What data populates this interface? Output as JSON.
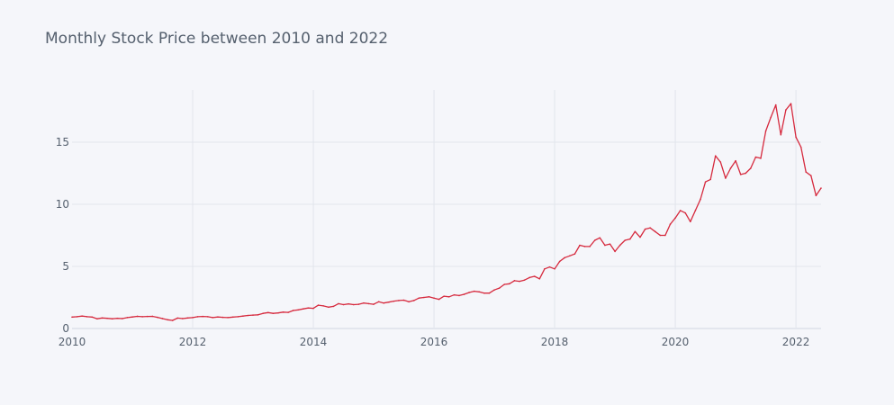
{
  "chart_data": {
    "type": "line",
    "title": "Monthly Stock Price between 2010 and 2022",
    "xlabel": "",
    "ylabel": "",
    "grid": true,
    "legend": "none",
    "x_ticks": [
      "2010",
      "2012",
      "2014",
      "2016",
      "2018",
      "2020",
      "2022"
    ],
    "y_ticks": [
      "0",
      "5",
      "10",
      "15"
    ],
    "xlim": [
      "2010-01",
      "2022-06"
    ],
    "ylim": [
      0,
      19.2
    ],
    "colors": {
      "line": "#d62a3e",
      "background": "#f5f6fa",
      "grid": "#e2e5ec",
      "text": "#55606e"
    },
    "series": [
      {
        "x": [
          "2010-01",
          "2010-02",
          "2010-03",
          "2010-04",
          "2010-05",
          "2010-06",
          "2010-07",
          "2010-08",
          "2010-09",
          "2010-10",
          "2010-11",
          "2010-12",
          "2011-01",
          "2011-02",
          "2011-03",
          "2011-04",
          "2011-05",
          "2011-06",
          "2011-07",
          "2011-08",
          "2011-09",
          "2011-10",
          "2011-11",
          "2011-12",
          "2012-01",
          "2012-02",
          "2012-03",
          "2012-04",
          "2012-05",
          "2012-06",
          "2012-07",
          "2012-08",
          "2012-09",
          "2012-10",
          "2012-11",
          "2012-12",
          "2013-01",
          "2013-02",
          "2013-03",
          "2013-04",
          "2013-05",
          "2013-06",
          "2013-07",
          "2013-08",
          "2013-09",
          "2013-10",
          "2013-11",
          "2013-12",
          "2014-01",
          "2014-02",
          "2014-03",
          "2014-04",
          "2014-05",
          "2014-06",
          "2014-07",
          "2014-08",
          "2014-09",
          "2014-10",
          "2014-11",
          "2014-12",
          "2015-01",
          "2015-02",
          "2015-03",
          "2015-04",
          "2015-05",
          "2015-06",
          "2015-07",
          "2015-08",
          "2015-09",
          "2015-10",
          "2015-11",
          "2015-12",
          "2016-01",
          "2016-02",
          "2016-03",
          "2016-04",
          "2016-05",
          "2016-06",
          "2016-07",
          "2016-08",
          "2016-09",
          "2016-10",
          "2016-11",
          "2016-12",
          "2017-01",
          "2017-02",
          "2017-03",
          "2017-04",
          "2017-05",
          "2017-06",
          "2017-07",
          "2017-08",
          "2017-09",
          "2017-10",
          "2017-11",
          "2017-12",
          "2018-01",
          "2018-02",
          "2018-03",
          "2018-04",
          "2018-05",
          "2018-06",
          "2018-07",
          "2018-08",
          "2018-09",
          "2018-10",
          "2018-11",
          "2018-12",
          "2019-01",
          "2019-02",
          "2019-03",
          "2019-04",
          "2019-05",
          "2019-06",
          "2019-07",
          "2019-08",
          "2019-09",
          "2019-10",
          "2019-11",
          "2019-12",
          "2020-01",
          "2020-02",
          "2020-03",
          "2020-04",
          "2020-05",
          "2020-06",
          "2020-07",
          "2020-08",
          "2020-09",
          "2020-10",
          "2020-11",
          "2020-12",
          "2021-01",
          "2021-02",
          "2021-03",
          "2021-04",
          "2021-05",
          "2021-06",
          "2021-07",
          "2021-08",
          "2021-09",
          "2021-10",
          "2021-11",
          "2021-12",
          "2022-01",
          "2022-02",
          "2022-03",
          "2022-04",
          "2022-05",
          "2022-06"
        ],
        "y": [
          0.92,
          0.95,
          1.0,
          0.95,
          0.92,
          0.78,
          0.85,
          0.82,
          0.78,
          0.82,
          0.8,
          0.88,
          0.93,
          0.98,
          0.95,
          0.97,
          0.98,
          0.9,
          0.8,
          0.7,
          0.65,
          0.84,
          0.8,
          0.85,
          0.88,
          0.95,
          0.97,
          0.95,
          0.88,
          0.93,
          0.9,
          0.88,
          0.92,
          0.95,
          1.0,
          1.05,
          1.08,
          1.1,
          1.22,
          1.28,
          1.22,
          1.25,
          1.32,
          1.3,
          1.45,
          1.5,
          1.58,
          1.65,
          1.62,
          1.88,
          1.82,
          1.72,
          1.78,
          2.0,
          1.92,
          1.98,
          1.92,
          1.95,
          2.05,
          2.0,
          1.95,
          2.15,
          2.05,
          2.12,
          2.2,
          2.25,
          2.28,
          2.15,
          2.25,
          2.45,
          2.5,
          2.55,
          2.45,
          2.35,
          2.6,
          2.55,
          2.7,
          2.65,
          2.75,
          2.9,
          3.0,
          2.95,
          2.85,
          2.85,
          3.1,
          3.25,
          3.55,
          3.6,
          3.85,
          3.8,
          3.9,
          4.1,
          4.2,
          4.0,
          4.8,
          4.95,
          4.8,
          5.4,
          5.7,
          5.85,
          6.0,
          6.7,
          6.6,
          6.6,
          7.1,
          7.3,
          6.7,
          6.8,
          6.2,
          6.7,
          7.1,
          7.2,
          7.8,
          7.35,
          8.0,
          8.1,
          7.8,
          7.5,
          7.5,
          8.4,
          8.9,
          9.5,
          9.3,
          8.6,
          9.5,
          10.4,
          11.8,
          12.0,
          13.9,
          13.4,
          12.1,
          12.9,
          13.5,
          12.4,
          12.5,
          12.9,
          13.8,
          13.7,
          15.9,
          17.0,
          18.0,
          15.6,
          17.6,
          18.1,
          15.4,
          14.6,
          12.6,
          12.3,
          10.7,
          11.3
        ]
      }
    ]
  }
}
